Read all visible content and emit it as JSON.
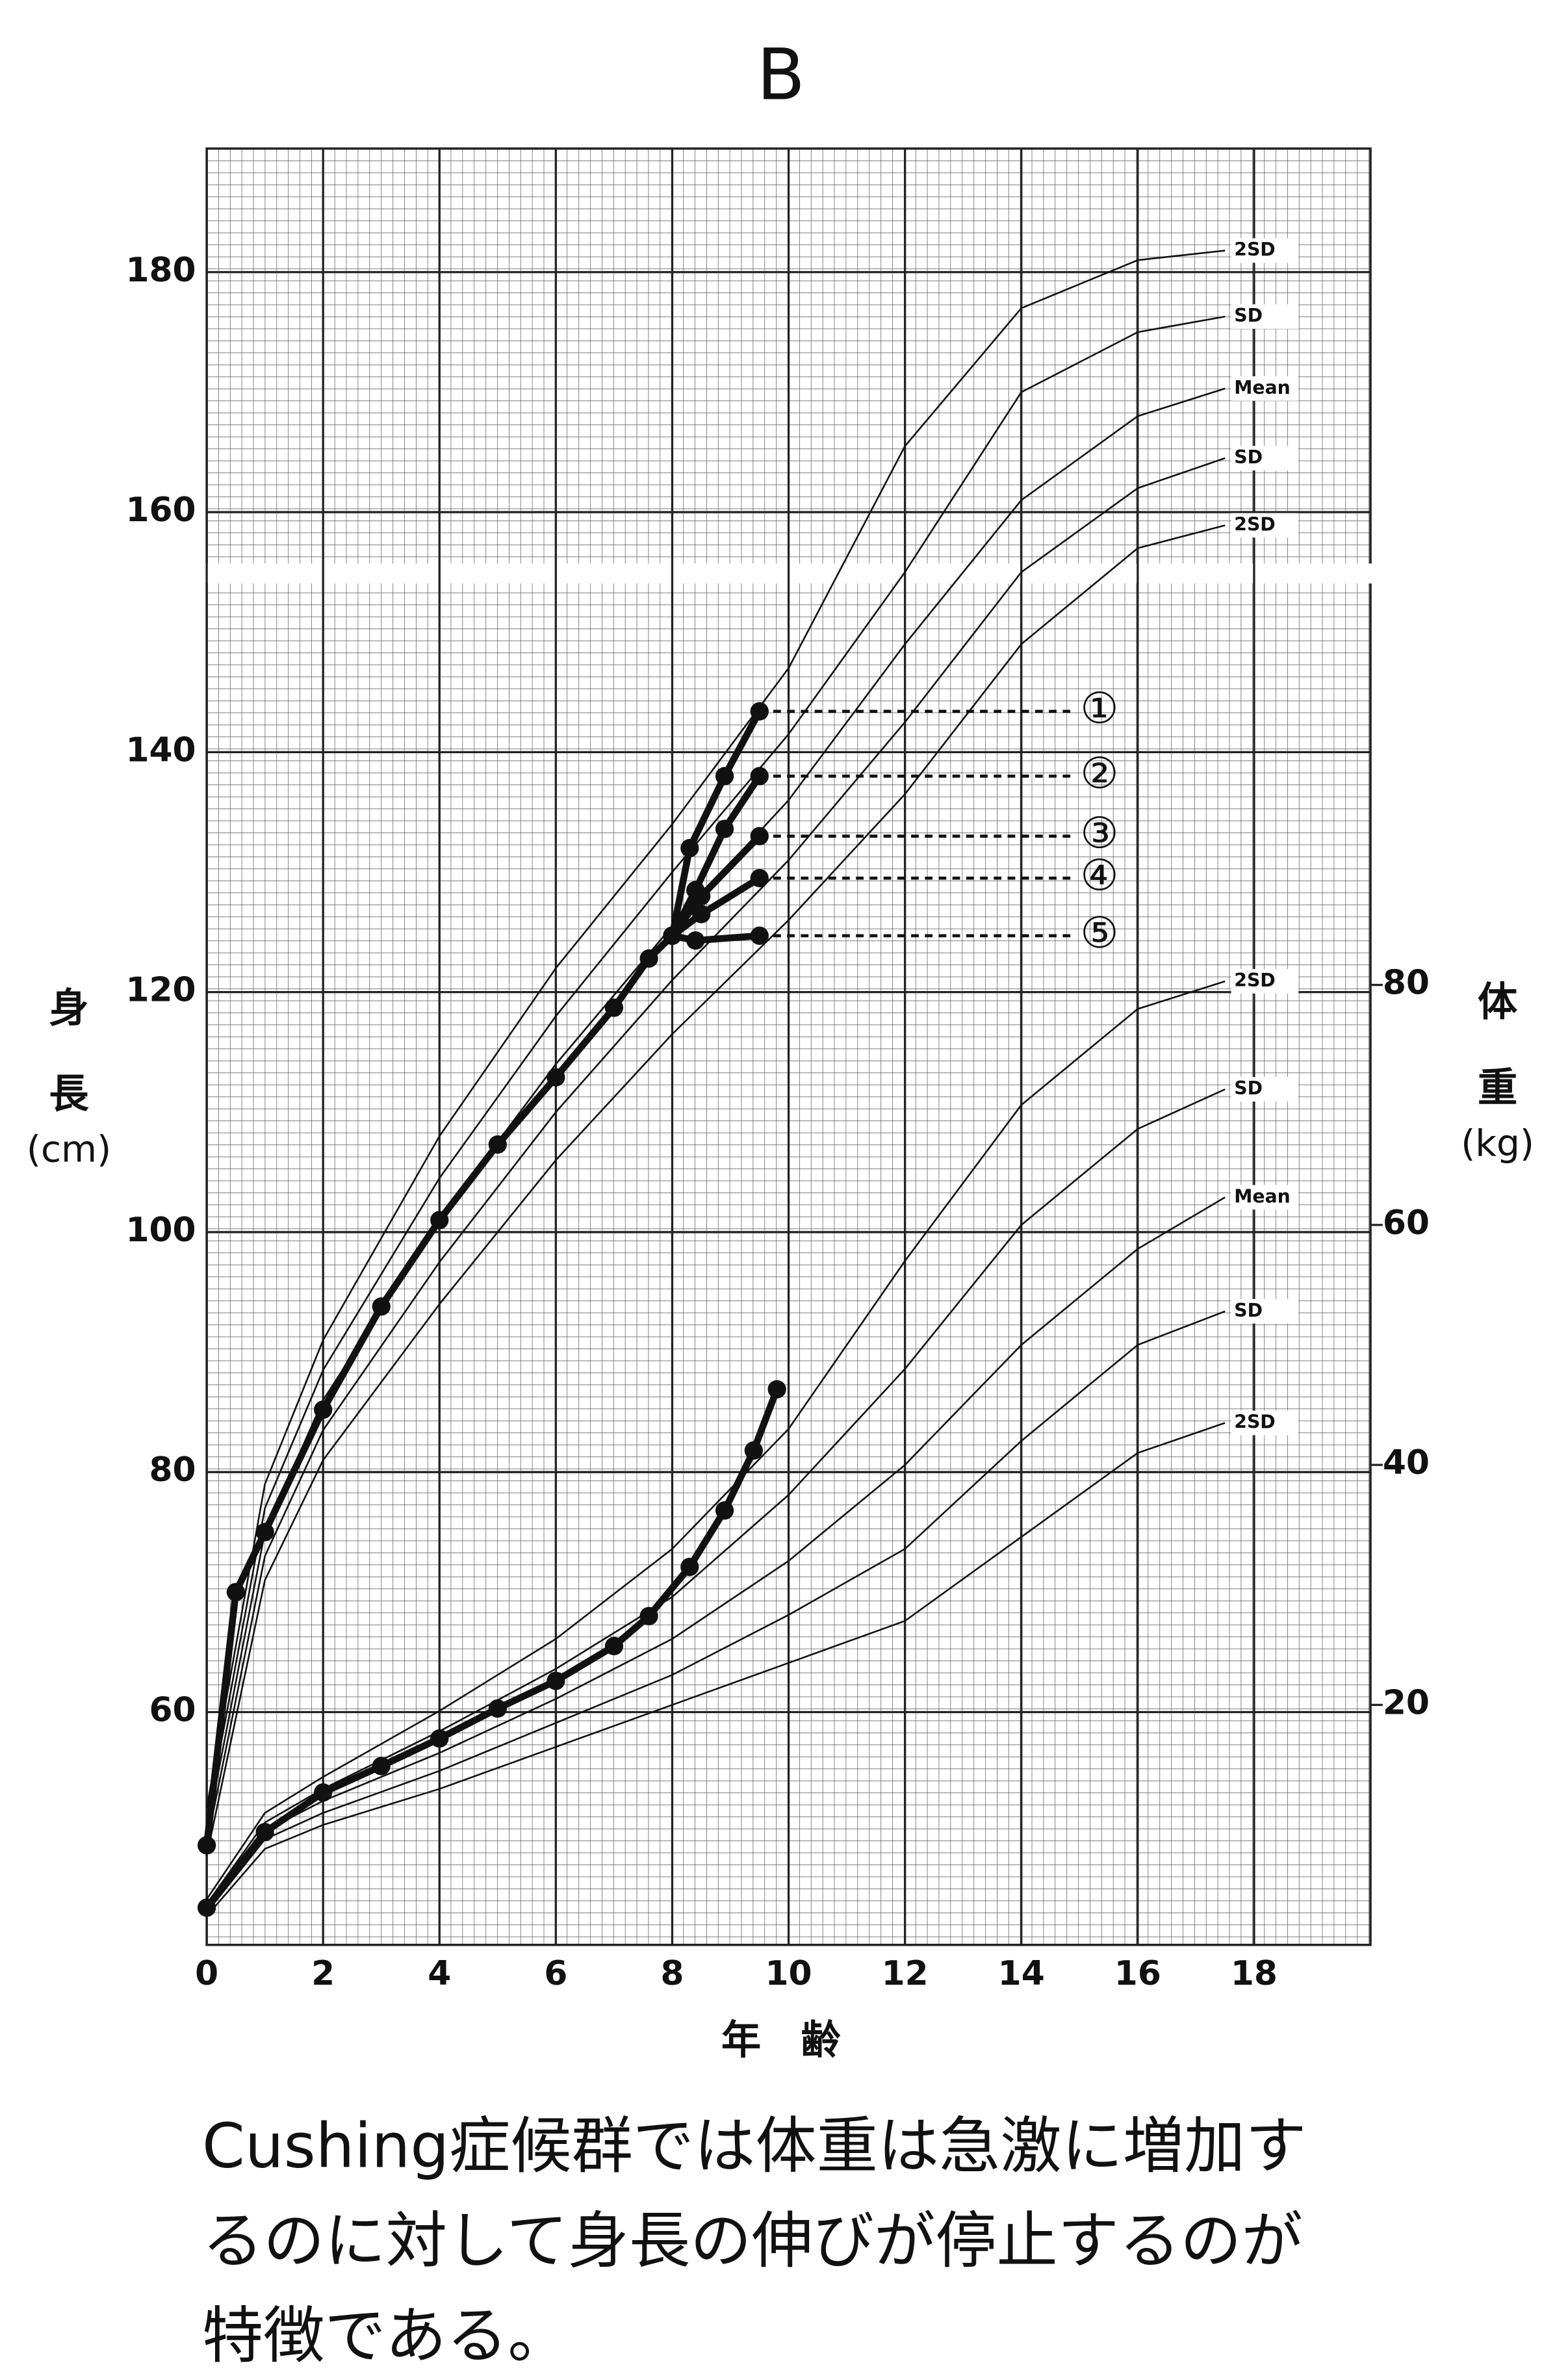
{
  "chart_data": {
    "type": "line",
    "title": "B",
    "ylabel_lines": [
      "身",
      "長",
      "(cm)"
    ],
    "y2label_lines": [
      "体",
      "重",
      "(kg)"
    ],
    "xlabel": "年　齢",
    "caption_lines": [
      "Cushing症候群では体重は急激に増加す",
      "るのに対して身長の伸びが停止するのが",
      "特徴である。"
    ],
    "xlim": [
      0,
      20
    ],
    "xticks": [
      0,
      2,
      4,
      6,
      8,
      10,
      12,
      14,
      16,
      18
    ],
    "ylim": [
      40.6,
      190.3
    ],
    "yticks": [
      60,
      80,
      100,
      120,
      140,
      160,
      180
    ],
    "y2lim": [
      0,
      149.7
    ],
    "y2ticks": [
      20,
      40,
      60,
      80
    ],
    "grid": true,
    "color": "#111111",
    "series": [
      {
        "label": "2SD",
        "style": "reference",
        "x": [
          0,
          1,
          2,
          4,
          6,
          8,
          10,
          12,
          14,
          16,
          17.5
        ],
        "values": [
          52,
          79,
          91,
          108,
          122,
          134,
          147,
          165.5,
          177,
          181,
          181.8
        ]
      },
      {
        "label": "SD",
        "style": "reference",
        "x": [
          0,
          1,
          2,
          4,
          6,
          8,
          10,
          12,
          14,
          16,
          17.5
        ],
        "values": [
          51,
          77,
          88.5,
          104.5,
          118,
          130,
          141.5,
          155,
          170,
          175,
          176.3
        ]
      },
      {
        "label": "Mean",
        "style": "reference",
        "x": [
          0,
          1,
          2,
          4,
          6,
          8,
          10,
          12,
          14,
          16,
          17.5
        ],
        "values": [
          50,
          75,
          86,
          101,
          114,
          125.5,
          136,
          149,
          161,
          168,
          170.3
        ]
      },
      {
        "label": "SD",
        "style": "reference",
        "x": [
          0,
          1,
          2,
          4,
          6,
          8,
          10,
          12,
          14,
          16,
          17.5
        ],
        "values": [
          49,
          73,
          83.5,
          97.5,
          110,
          121,
          131,
          142.5,
          155,
          162,
          164.5
        ]
      },
      {
        "label": "2SD",
        "style": "reference",
        "x": [
          0,
          1,
          2,
          4,
          6,
          8,
          10,
          12,
          14,
          16,
          17.5
        ],
        "values": [
          48,
          71,
          81,
          94,
          106,
          116.5,
          126,
          136.5,
          149,
          157,
          158.9
        ]
      },
      {
        "label": "2SD",
        "style": "reference",
        "axis": "y2",
        "x": [
          0,
          1,
          2,
          4,
          6,
          8,
          10,
          12,
          14,
          16,
          17.5
        ],
        "values": [
          3.8,
          11,
          14,
          19.5,
          25.5,
          33,
          43,
          57,
          70,
          78,
          80.3
        ]
      },
      {
        "label": "SD",
        "style": "reference",
        "axis": "y2",
        "x": [
          0,
          1,
          2,
          4,
          6,
          8,
          10,
          12,
          14,
          16,
          17.5
        ],
        "values": [
          3.4,
          10.2,
          13,
          17.8,
          23,
          29,
          37.5,
          48,
          60,
          68,
          71.3
        ]
      },
      {
        "label": "Mean",
        "style": "reference",
        "axis": "y2",
        "x": [
          0,
          1,
          2,
          4,
          6,
          8,
          10,
          12,
          14,
          16,
          17.5
        ],
        "values": [
          3,
          9.5,
          12,
          16,
          20.5,
          25.5,
          32,
          40,
          50,
          58,
          62.3
        ]
      },
      {
        "label": "SD",
        "style": "reference",
        "axis": "y2",
        "x": [
          0,
          1,
          2,
          4,
          6,
          8,
          10,
          12,
          14,
          16,
          17.5
        ],
        "values": [
          2.7,
          8.8,
          11,
          14.5,
          18.5,
          22.5,
          27.5,
          33,
          42,
          50,
          52.8
        ]
      },
      {
        "label": "2SD",
        "style": "reference",
        "axis": "y2",
        "x": [
          0,
          1,
          2,
          4,
          6,
          8,
          10,
          12,
          14,
          16,
          17.5
        ],
        "values": [
          2.4,
          8,
          10,
          13,
          16.5,
          20,
          23.5,
          27,
          34,
          41,
          43.5
        ]
      },
      {
        "style": "patient",
        "x": [
          0,
          0.5,
          1,
          2,
          3,
          4,
          5,
          6,
          7,
          7.6,
          8
        ],
        "values": [
          48.9,
          70,
          75,
          85.2,
          93.8,
          101,
          107.3,
          112.9,
          118.7,
          122.8,
          124.7
        ]
      },
      {
        "label": "①",
        "style": "patient",
        "x": [
          8,
          8.3,
          8.9,
          9.5
        ],
        "values": [
          124.7,
          132,
          138,
          143.4
        ]
      },
      {
        "label": "②",
        "style": "patient",
        "x": [
          8,
          8.4,
          8.9,
          9.5
        ],
        "values": [
          124.7,
          128.5,
          133.6,
          138
        ]
      },
      {
        "label": "③",
        "style": "patient",
        "x": [
          8,
          8.5,
          9.5
        ],
        "values": [
          124.7,
          128,
          133
        ]
      },
      {
        "label": "④",
        "style": "patient",
        "x": [
          8,
          8.5,
          9.5
        ],
        "values": [
          124.7,
          126.5,
          129.5
        ]
      },
      {
        "label": "⑤",
        "style": "patient",
        "x": [
          8,
          8.4,
          9.5
        ],
        "values": [
          124.7,
          124.3,
          124.7
        ]
      },
      {
        "style": "patient",
        "axis": "y2",
        "x": [
          0,
          1,
          2,
          3,
          4,
          5,
          6,
          7,
          7.6,
          8.3,
          8.9,
          9.4,
          9.8
        ],
        "values": [
          3.1,
          9.4,
          12.7,
          14.9,
          17.2,
          19.7,
          22,
          24.9,
          27.4,
          31.5,
          36.2,
          41.2,
          46.3
        ]
      }
    ]
  }
}
